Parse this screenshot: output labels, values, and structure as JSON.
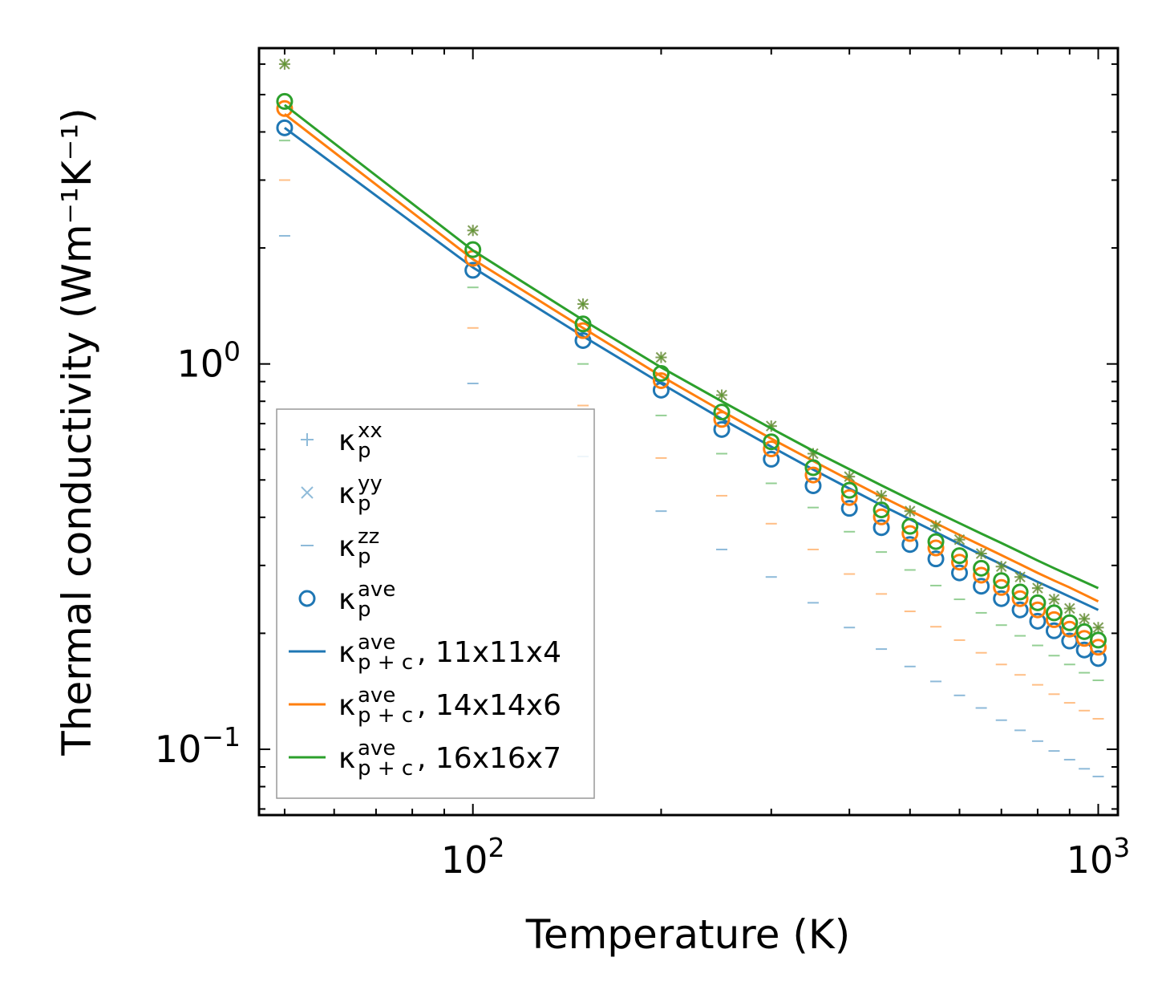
{
  "chart_data": {
    "type": "scatter",
    "scale": "log-log",
    "xlabel": "Temperature (K)",
    "ylabel": "Thermal conductivity (Wm⁻¹K⁻¹)",
    "xlim": [
      45.5,
      1075
    ],
    "ylim": [
      0.0675,
      6.6
    ],
    "x_ticks": [
      {
        "value": 100,
        "base": "10",
        "exp": "2"
      },
      {
        "value": 1000,
        "base": "10",
        "exp": "3"
      }
    ],
    "y_ticks": [
      {
        "value": 1,
        "base": "10",
        "exp": "0"
      },
      {
        "value": 0.1,
        "base": "10",
        "exp": "−1"
      }
    ],
    "x": [
      50,
      100,
      150,
      200,
      250,
      300,
      350,
      400,
      450,
      500,
      550,
      600,
      650,
      700,
      750,
      800,
      850,
      900,
      950,
      1000
    ],
    "series": [
      {
        "name": "11x11x4",
        "color": "#1f77b4",
        "kxx": [
          6.0,
          2.22,
          1.43,
          1.04,
          0.83,
          0.69,
          0.585,
          0.51,
          0.455,
          0.415,
          0.38,
          0.35,
          0.322,
          0.298,
          0.28,
          0.262,
          0.245,
          0.232,
          0.218,
          0.207
        ],
        "kyy": [
          6.0,
          2.22,
          1.43,
          1.04,
          0.83,
          0.69,
          0.585,
          0.51,
          0.455,
          0.415,
          0.38,
          0.35,
          0.322,
          0.298,
          0.28,
          0.262,
          0.245,
          0.232,
          0.218,
          0.207
        ],
        "kzz": [
          2.15,
          0.89,
          0.575,
          0.415,
          0.33,
          0.28,
          0.24,
          0.207,
          0.182,
          0.164,
          0.15,
          0.138,
          0.128,
          0.119,
          0.112,
          0.105,
          0.099,
          0.094,
          0.089,
          0.085
        ],
        "kave": [
          4.1,
          1.75,
          1.15,
          0.855,
          0.676,
          0.566,
          0.483,
          0.422,
          0.376,
          0.34,
          0.312,
          0.287,
          0.265,
          0.246,
          0.23,
          0.215,
          0.203,
          0.191,
          0.181,
          0.172
        ],
        "kpc": [
          4.1,
          1.78,
          1.18,
          0.89,
          0.72,
          0.61,
          0.532,
          0.475,
          0.43,
          0.395,
          0.366,
          0.341,
          0.32,
          0.302,
          0.286,
          0.272,
          0.26,
          0.249,
          0.239,
          0.23
        ]
      },
      {
        "name": "14x14x6",
        "color": "#ff7f0e",
        "kxx": [
          6.0,
          2.22,
          1.43,
          1.04,
          0.83,
          0.69,
          0.585,
          0.51,
          0.455,
          0.415,
          0.38,
          0.35,
          0.322,
          0.298,
          0.28,
          0.262,
          0.245,
          0.232,
          0.218,
          0.207
        ],
        "kyy": [
          6.0,
          2.22,
          1.43,
          1.04,
          0.83,
          0.69,
          0.585,
          0.51,
          0.455,
          0.415,
          0.38,
          0.35,
          0.322,
          0.298,
          0.28,
          0.262,
          0.245,
          0.232,
          0.218,
          0.207
        ],
        "kzz": [
          3.0,
          1.24,
          0.78,
          0.57,
          0.455,
          0.385,
          0.33,
          0.285,
          0.253,
          0.228,
          0.208,
          0.192,
          0.178,
          0.166,
          0.156,
          0.147,
          0.139,
          0.132,
          0.126,
          0.12
        ],
        "kave": [
          4.6,
          1.88,
          1.22,
          0.905,
          0.718,
          0.602,
          0.515,
          0.45,
          0.401,
          0.363,
          0.333,
          0.306,
          0.283,
          0.263,
          0.246,
          0.23,
          0.217,
          0.205,
          0.194,
          0.184
        ],
        "kpc": [
          4.45,
          1.87,
          1.24,
          0.93,
          0.755,
          0.64,
          0.56,
          0.5,
          0.453,
          0.416,
          0.386,
          0.36,
          0.338,
          0.319,
          0.302,
          0.287,
          0.274,
          0.263,
          0.252,
          0.242
        ]
      },
      {
        "name": "16x16x7",
        "color": "#2ca02c",
        "kxx": [
          6.0,
          2.22,
          1.43,
          1.04,
          0.83,
          0.69,
          0.585,
          0.51,
          0.455,
          0.415,
          0.38,
          0.35,
          0.322,
          0.298,
          0.28,
          0.262,
          0.245,
          0.232,
          0.218,
          0.207
        ],
        "kyy": [
          6.0,
          2.22,
          1.43,
          1.04,
          0.83,
          0.69,
          0.585,
          0.51,
          0.455,
          0.415,
          0.38,
          0.35,
          0.322,
          0.298,
          0.28,
          0.262,
          0.245,
          0.232,
          0.218,
          0.207
        ],
        "kzz": [
          3.8,
          1.58,
          1.0,
          0.735,
          0.585,
          0.49,
          0.424,
          0.367,
          0.325,
          0.292,
          0.266,
          0.245,
          0.226,
          0.21,
          0.197,
          0.186,
          0.175,
          0.166,
          0.158,
          0.151
        ],
        "kave": [
          4.8,
          1.98,
          1.27,
          0.945,
          0.75,
          0.628,
          0.538,
          0.47,
          0.418,
          0.379,
          0.346,
          0.318,
          0.295,
          0.274,
          0.256,
          0.24,
          0.226,
          0.213,
          0.202,
          0.192
        ],
        "kpc": [
          4.7,
          1.97,
          1.3,
          0.98,
          0.8,
          0.68,
          0.595,
          0.533,
          0.484,
          0.445,
          0.413,
          0.386,
          0.363,
          0.343,
          0.325,
          0.309,
          0.295,
          0.283,
          0.272,
          0.262
        ]
      }
    ],
    "legend": {
      "placement": "lower-left",
      "entries": [
        {
          "kind": "plus",
          "base": "κ",
          "sub": "p",
          "sup": "xx",
          "suffix": ""
        },
        {
          "kind": "cross",
          "base": "κ",
          "sub": "p",
          "sup": "yy",
          "suffix": ""
        },
        {
          "kind": "dash",
          "base": "κ",
          "sub": "p",
          "sup": "zz",
          "suffix": ""
        },
        {
          "kind": "circle",
          "base": "κ",
          "sub": "p",
          "sup": "ave",
          "suffix": ""
        },
        {
          "kind": "line",
          "base": "κ",
          "sub": "p + c",
          "sup": "ave",
          "suffix": ", 11x11x4",
          "color": "#1f77b4"
        },
        {
          "kind": "line",
          "base": "κ",
          "sub": "p + c",
          "sup": "ave",
          "suffix": ", 14x14x6",
          "color": "#ff7f0e"
        },
        {
          "kind": "line",
          "base": "κ",
          "sub": "p + c",
          "sup": "ave",
          "suffix": ", 16x16x7",
          "color": "#2ca02c"
        }
      ]
    }
  }
}
